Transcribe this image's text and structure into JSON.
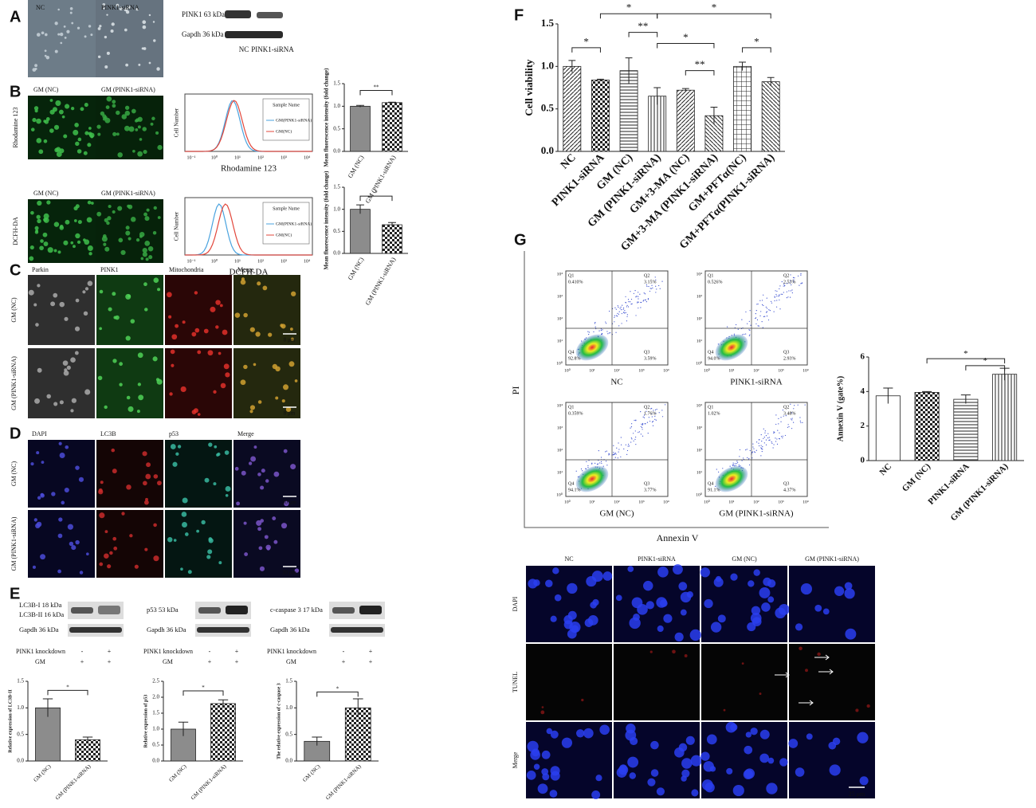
{
  "panel_letters": [
    "A",
    "B",
    "C",
    "D",
    "E",
    "F",
    "G"
  ],
  "panel_a": {
    "image_labels": [
      "NC",
      "PINK1-siRNA"
    ],
    "blot_labels": [
      "PINK1 63 kDa",
      "Gapdh 36 kDa"
    ],
    "lanes": [
      "NC",
      "PINK1-siRNA"
    ]
  },
  "panel_b": {
    "image_labels": [
      "GM (NC)",
      "GM (PINK1-siRNA)"
    ],
    "row_labels": [
      "Rhodamine 123",
      "DCFH-DA"
    ],
    "histogram_ylabel": "Cell Number",
    "histogram_xticks": [
      "10⁻¹",
      "10⁰",
      "10¹",
      "10²",
      "10³",
      "10⁴"
    ],
    "legend_title": "Sample Name",
    "legend": [
      "GM(PINK1-siRNA)",
      "GM(NC)"
    ]
  },
  "panel_c": {
    "columns": [
      "Parkin",
      "PINK1",
      "Mitochondria",
      "Merge"
    ],
    "rows": [
      "GM (NC)",
      "GM (PINK1-siRNA)"
    ],
    "scale": "8 μm"
  },
  "panel_d": {
    "columns": [
      "DAPI",
      "LC3B",
      "p53",
      "Merge"
    ],
    "rows": [
      "GM (NC)",
      "GM (PINK1-siRNA)"
    ],
    "scale": "30 μm"
  },
  "panel_e": {
    "blots": [
      [
        "LC3B-I 18 kDa",
        "LC3B-II 16 kDa",
        "Gapdh 36 kDa"
      ],
      [
        "p53 53 kDa",
        "Gapdh 36 kDa"
      ],
      [
        "c-caspase 3 17 kDa",
        "Gapdh 36 kDa"
      ]
    ],
    "conditions": [
      "PINK1 knockdown",
      "GM"
    ],
    "signs": [
      [
        "-",
        "+"
      ],
      [
        "+",
        "+"
      ]
    ]
  },
  "panel_g": {
    "y_axis": "PI",
    "x_axis": "Annexin V",
    "ticks": [
      "10⁰",
      "10¹",
      "10²",
      "10³",
      "10⁴"
    ],
    "quadrants": [
      "Q1",
      "Q2",
      "Q3",
      "Q4"
    ],
    "plots": [
      {
        "name": "NC",
        "percents": [
          "0.410%",
          "3.15%",
          "3.59%",
          "92.8%"
        ]
      },
      {
        "name": "PINK1-siRNA",
        "percents": [
          "0.526%",
          "2.53%",
          "2.93%",
          "94.0%"
        ]
      },
      {
        "name": "GM (NC)",
        "percents": [
          "0.359%",
          "1.76%",
          "3.77%",
          "94.1%"
        ]
      },
      {
        "name": "GM (PINK1-siRNA)",
        "percents": [
          "1.02%",
          "3.48%",
          "4.37%",
          "91.1%"
        ]
      }
    ]
  },
  "panel_tunel": {
    "columns": [
      "NC",
      "PINK1-siRNA",
      "GM (NC)",
      "GM (PINK1-siRNA)"
    ],
    "rows": [
      "DAPI",
      "TUNEL",
      "Merge"
    ],
    "scale": "25 μm"
  },
  "chart_data": [
    {
      "type": "bar",
      "ylabel": "Mean fluorescence intensity (fold change)",
      "categories": [
        "GM (NC)",
        "GM (PINK1-siRNA)"
      ],
      "values": [
        1.0,
        1.08
      ],
      "errors": [
        0.02,
        0.01
      ],
      "patterns": [
        "gray",
        "checker"
      ],
      "ylim": [
        0,
        1.5
      ],
      "yticks": [
        {
          "value": 0,
          "label": "0.0"
        },
        0.5,
        {
          "value": 1,
          "label": "1.0"
        },
        1.5
      ],
      "annotations": [
        "**"
      ]
    },
    {
      "type": "bar",
      "ylabel": "Mean fluorescence intensity (fold change)",
      "categories": [
        "GM (NC)",
        "GM (PINK1-siRNA)"
      ],
      "values": [
        1.0,
        0.65
      ],
      "errors": [
        0.1,
        0.05
      ],
      "patterns": [
        "gray",
        "checker"
      ],
      "ylim": [
        0,
        1.5
      ],
      "yticks": [
        {
          "value": 0,
          "label": "0.0"
        },
        0.5,
        {
          "value": 1,
          "label": "1.0"
        },
        1.5
      ],
      "annotations": [
        "*"
      ]
    },
    {
      "type": "bar",
      "ylabel": "Relative expression of LC3B-II",
      "categories": [
        "GM (NC)",
        "GM (PINK1-siRNA)"
      ],
      "values": [
        1.0,
        0.4
      ],
      "errors": [
        0.17,
        0.05
      ],
      "patterns": [
        "gray",
        "checker"
      ],
      "ylim": [
        0,
        1.5
      ],
      "yticks": [
        {
          "value": 0,
          "label": "0.0"
        },
        0.5,
        {
          "value": 1,
          "label": "1.0"
        },
        1.5
      ],
      "annotations": [
        "*"
      ]
    },
    {
      "type": "bar",
      "ylabel": "Relative expression of p53",
      "categories": [
        "GM (NC)",
        "GM (PINK1-siRNA)"
      ],
      "values": [
        1.0,
        1.8
      ],
      "errors": [
        0.22,
        0.12
      ],
      "patterns": [
        "gray",
        "checker"
      ],
      "ylim": [
        0,
        2.5
      ],
      "yticks": [
        {
          "value": 0,
          "label": "0.0"
        },
        0.5,
        {
          "value": 1,
          "label": "1.0"
        },
        1.5,
        {
          "value": 2,
          "label": "2.0"
        },
        2.5
      ],
      "annotations": [
        "*"
      ]
    },
    {
      "type": "bar",
      "ylabel": "The relative expression of c-caspase 3",
      "categories": [
        "GM (NC)",
        "GM (PINK1-siRNA)"
      ],
      "values": [
        0.37,
        1.0
      ],
      "errors": [
        0.08,
        0.17
      ],
      "patterns": [
        "gray",
        "checker"
      ],
      "ylim": [
        0,
        1.5
      ],
      "yticks": [
        {
          "value": 0,
          "label": "0.0"
        },
        0.5,
        {
          "value": 1,
          "label": "1.0"
        },
        1.5
      ],
      "annotations": [
        "*"
      ]
    },
    {
      "type": "bar",
      "ylabel": "Cell viability",
      "categories": [
        "NC",
        "PINK1-siRNA",
        "GM (NC)",
        "GM (PINK1-siRNA)",
        "GM+3-MA (NC)",
        "GM+3-MA (PINK1-siRNA)",
        "GM+PFTα(NC)",
        "GM+PFTα(PINK1-siRNA)"
      ],
      "values": [
        1.0,
        0.84,
        0.95,
        0.65,
        0.72,
        0.42,
        1.0,
        0.82
      ],
      "errors": [
        0.07,
        0.01,
        0.15,
        0.1,
        0.02,
        0.1,
        0.05,
        0.05
      ],
      "patterns": [
        "diag",
        "checker",
        "hstripe",
        "vstripe",
        "diag",
        "diag2",
        "grid",
        "diag2"
      ],
      "ylim": [
        0,
        1.5
      ],
      "yticks": [
        {
          "value": 0,
          "label": "0.0"
        },
        0.5,
        {
          "value": 1,
          "label": "1.0"
        },
        1.5
      ],
      "annotations": [
        "*",
        "*",
        "*",
        "**",
        "*",
        "**",
        "*"
      ]
    },
    {
      "type": "bar",
      "ylabel": "Annexin V (gate%)",
      "categories": [
        "NC",
        "GM (NC)",
        "PINK1-siRNA",
        "GM (PINK1-siRNA)"
      ],
      "values": [
        3.75,
        3.95,
        3.55,
        5.0
      ],
      "errors": [
        0.45,
        0.05,
        0.25,
        0.35
      ],
      "patterns": [
        "white",
        "checker",
        "hstripe",
        "vstripe"
      ],
      "ylim": [
        0,
        6
      ],
      "yticks": [
        0,
        2,
        4,
        6
      ],
      "annotations": [
        "*",
        "*"
      ]
    }
  ]
}
